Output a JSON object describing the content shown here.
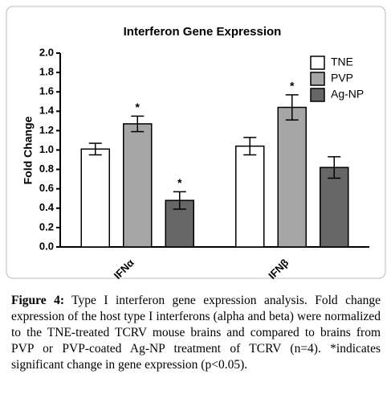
{
  "chart_data": {
    "type": "bar",
    "title": "Interferon Gene Expression",
    "y_label": "Fold Change",
    "categories": [
      "IFNα",
      "IFNβ"
    ],
    "series": [
      {
        "name": "TNE",
        "color": "#ffffff",
        "values": [
          1.01,
          1.04
        ],
        "errors": [
          0.06,
          0.09
        ],
        "markers": [
          null,
          null
        ]
      },
      {
        "name": "PVP",
        "color": "#a6a6a6",
        "values": [
          1.27,
          1.44
        ],
        "errors": [
          0.08,
          0.13
        ],
        "markers": [
          "*",
          "*"
        ]
      },
      {
        "name": "Ag-NP",
        "color": "#666666",
        "values": [
          0.48,
          0.82
        ],
        "errors": [
          0.09,
          0.11
        ],
        "markers": [
          "*",
          null
        ]
      }
    ],
    "ylim": [
      0,
      2.0
    ],
    "yticks": [
      {
        "value": 0,
        "label": "0.0"
      },
      {
        "value": 0.2,
        "label": "0.2"
      },
      {
        "value": 0.4,
        "label": "0.4"
      },
      {
        "value": 0.6,
        "label": "0.6"
      },
      {
        "value": 0.8,
        "label": "0.8"
      },
      {
        "value": 1.0,
        "label": "1.0"
      },
      {
        "value": 1.2,
        "label": "1.2"
      },
      {
        "value": 1.4,
        "label": "1.4"
      },
      {
        "value": 1.6,
        "label": "1.6"
      },
      {
        "value": 1.8,
        "label": "1.8"
      },
      {
        "value": 2.0,
        "label": "2.0"
      }
    ],
    "legend": "upper right",
    "grid": false
  },
  "caption": {
    "label": "Figure 4:",
    "text": "Type I interferon gene expression analysis. Fold change expression of the host type I interferons (alpha and beta) were normalized to the TNE-treated TCRV mouse brains and compared to brains from PVP or PVP-coated Ag-NP treatment of TCRV (n=4). *indicates significant change in gene expression (p<0.05)."
  }
}
